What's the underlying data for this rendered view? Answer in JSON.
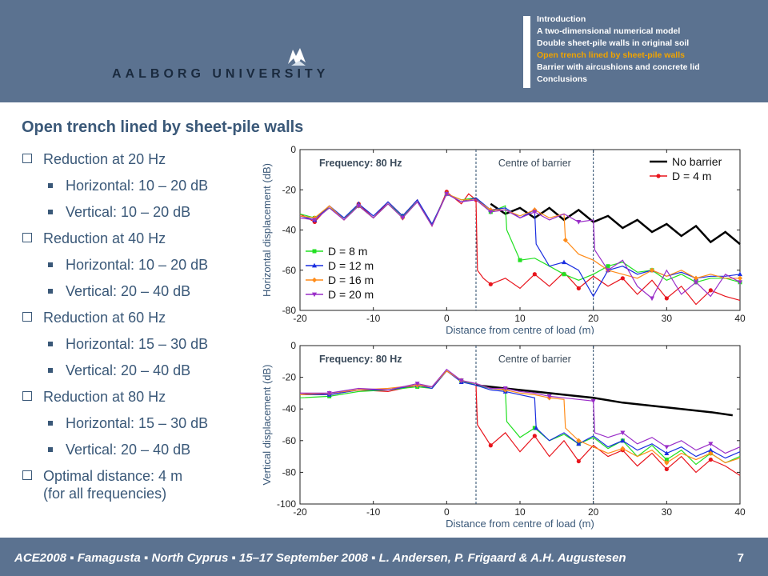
{
  "header": {
    "logo_text": "AALBORG UNIVERSITY",
    "nav_items": [
      "Introduction",
      "A two-dimensional numerical model",
      "Double sheet-pile walls in original soil",
      "Open trench lined by sheet-pile walls",
      "Barrier with aircushions and concrete lid",
      "Conclusions"
    ],
    "active_index": 3
  },
  "slide": {
    "title": "Open trench lined by sheet-pile walls",
    "bullets": [
      {
        "text": "Reduction at 20 Hz",
        "sub": [
          "Horizontal: 10 – 20 dB",
          "Vertical: 10 – 20 dB"
        ]
      },
      {
        "text": "Reduction at 40 Hz",
        "sub": [
          "Horizontal: 10 – 20 dB",
          "Vertical: 20 – 40 dB"
        ]
      },
      {
        "text": "Reduction at 60 Hz",
        "sub": [
          "Horizontal: 15 – 30 dB",
          "Vertical: 20 – 40 dB"
        ]
      },
      {
        "text": "Reduction at 80 Hz",
        "sub": [
          "Horizontal: 15 – 30 dB",
          "Vertical: 20 – 40 dB"
        ]
      }
    ],
    "final_bullet": {
      "line1": "Optimal distance: 4 m",
      "line2": "(for all frequencies)"
    }
  },
  "footer": {
    "text": "ACE2008 ▪ Famagusta ▪ North Cyprus ▪ 15–17 September 2008 ▪ L. Andersen, P. Frigaard & A.H. Augustesen",
    "page_number": "7"
  },
  "colors": {
    "header_bg": "#5b7290",
    "title_text": "#3a5878",
    "active_nav": "#f0a400",
    "no_barrier": "#000000",
    "d4": "#e8141c",
    "d8": "#22e022",
    "d12": "#1a2ee0",
    "d16": "#ff8c1a",
    "d20": "#9a2ec8"
  },
  "chart_data": [
    {
      "type": "line",
      "annotation_left": "Frequency: 80 Hz",
      "annotation_right": "Centre of barrier",
      "xlabel": "Distance from centre of load (m)",
      "ylabel": "Horizontal displacement (dB)",
      "xlim": [
        -20,
        40
      ],
      "ylim": [
        -80,
        0
      ],
      "xticks": [
        -20,
        -10,
        0,
        10,
        20,
        30,
        40
      ],
      "yticks": [
        0,
        -20,
        -40,
        -60,
        -80
      ],
      "barrier_lines_x": [
        4,
        20
      ],
      "legend_top": [
        "No barrier",
        "D = 4 m"
      ],
      "legend_bottom": [
        "D = 8 m",
        "D = 12 m",
        "D = 16 m",
        "D = 20 m"
      ],
      "series": [
        {
          "name": "No barrier",
          "color": "#000000",
          "marker": "none",
          "x": [
            6,
            8,
            10,
            12,
            14,
            16,
            18,
            20,
            22,
            24,
            26,
            28,
            30,
            32,
            34,
            36,
            38,
            40
          ],
          "y": [
            -27,
            -32,
            -29,
            -34,
            -29,
            -35,
            -30,
            -36,
            -33,
            -39,
            -35,
            -41,
            -37,
            -43,
            -38,
            -46,
            -41,
            -47
          ]
        },
        {
          "name": "D = 4 m",
          "color": "#e8141c",
          "marker": "circle",
          "x": [
            -20,
            -18,
            -16,
            -14,
            -12,
            -10,
            -8,
            -6,
            -4,
            -2,
            0,
            2,
            3,
            4,
            4.2,
            5,
            6,
            8,
            10,
            12,
            14,
            16,
            18,
            20,
            22,
            24,
            26,
            28,
            30,
            32,
            34,
            36,
            38,
            40
          ],
          "y": [
            -32,
            -36,
            -28,
            -35,
            -27,
            -34,
            -26,
            -33,
            -25,
            -38,
            -21,
            -27,
            -22,
            -25,
            -60,
            -64,
            -67,
            -64,
            -69,
            -62,
            -68,
            -61,
            -69,
            -63,
            -68,
            -64,
            -72,
            -65,
            -74,
            -68,
            -77,
            -70,
            -73,
            -75
          ]
        },
        {
          "name": "D = 8 m",
          "color": "#22e022",
          "marker": "square",
          "x": [
            -20,
            -18,
            -16,
            -14,
            -12,
            -10,
            -8,
            -6,
            -4,
            -2,
            0,
            2,
            4,
            6,
            8,
            8.2,
            10,
            12,
            14,
            16,
            18,
            20,
            22,
            24,
            26,
            28,
            30,
            32,
            34,
            36,
            38,
            40
          ],
          "y": [
            -32,
            -34,
            -29,
            -34,
            -28,
            -34,
            -27,
            -33,
            -26,
            -37,
            -22,
            -25,
            -24,
            -31,
            -28,
            -40,
            -55,
            -54,
            -58,
            -62,
            -65,
            -62,
            -58,
            -56,
            -61,
            -60,
            -65,
            -62,
            -66,
            -64,
            -64,
            -66
          ]
        },
        {
          "name": "D = 12 m",
          "color": "#1a2ee0",
          "marker": "triangle",
          "x": [
            -20,
            -18,
            -16,
            -14,
            -12,
            -10,
            -8,
            -6,
            -4,
            -2,
            0,
            2,
            4,
            6,
            8,
            10,
            12,
            12.2,
            14,
            16,
            18,
            20,
            22,
            24,
            26,
            28,
            30,
            32,
            34,
            36,
            38,
            40
          ],
          "y": [
            -33,
            -35,
            -28,
            -34,
            -27,
            -33,
            -26,
            -33,
            -25,
            -37,
            -22,
            -26,
            -24,
            -30,
            -29,
            -34,
            -30,
            -47,
            -58,
            -56,
            -60,
            -73,
            -60,
            -58,
            -62,
            -60,
            -63,
            -61,
            -64,
            -63,
            -63,
            -62
          ]
        },
        {
          "name": "D = 16 m",
          "color": "#ff8c1a",
          "marker": "diamond",
          "x": [
            -20,
            -18,
            -16,
            -14,
            -12,
            -10,
            -8,
            -6,
            -4,
            -2,
            0,
            2,
            4,
            6,
            8,
            10,
            12,
            14,
            16,
            16.2,
            18,
            20,
            22,
            24,
            26,
            28,
            30,
            32,
            34,
            36,
            38,
            40
          ],
          "y": [
            -33,
            -34,
            -28,
            -35,
            -28,
            -34,
            -27,
            -34,
            -26,
            -38,
            -22,
            -25,
            -25,
            -30,
            -30,
            -33,
            -30,
            -34,
            -32,
            -45,
            -52,
            -55,
            -60,
            -62,
            -64,
            -60,
            -63,
            -60,
            -64,
            -62,
            -64,
            -64
          ]
        },
        {
          "name": "D = 20 m",
          "color": "#9a2ec8",
          "marker": "triangle-down",
          "x": [
            -20,
            -18,
            -16,
            -14,
            -12,
            -10,
            -8,
            -6,
            -4,
            -2,
            0,
            2,
            4,
            6,
            8,
            10,
            12,
            14,
            16,
            18,
            20,
            20.2,
            22,
            24,
            26,
            28,
            30,
            32,
            34,
            36,
            38,
            40
          ],
          "y": [
            -34,
            -35,
            -29,
            -35,
            -28,
            -34,
            -27,
            -34,
            -26,
            -38,
            -22,
            -26,
            -25,
            -31,
            -30,
            -34,
            -31,
            -35,
            -32,
            -36,
            -35,
            -50,
            -60,
            -55,
            -68,
            -74,
            -60,
            -72,
            -66,
            -73,
            -62,
            -66
          ]
        }
      ]
    },
    {
      "type": "line",
      "annotation_left": "Frequency: 80 Hz",
      "annotation_right": "Centre of barrier",
      "xlabel": "Distance from centre of load (m)",
      "ylabel": "Vertical displacement (dB)",
      "xlim": [
        -20,
        40
      ],
      "ylim": [
        -100,
        0
      ],
      "xticks": [
        -20,
        -10,
        0,
        10,
        20,
        30,
        40
      ],
      "yticks": [
        0,
        -20,
        -40,
        -60,
        -80,
        -100
      ],
      "barrier_lines_x": [
        4,
        20
      ],
      "series": [
        {
          "name": "No barrier",
          "color": "#000000",
          "marker": "none",
          "x": [
            4,
            8,
            12,
            16,
            20,
            24,
            28,
            32,
            36,
            39
          ],
          "y": [
            -25,
            -27,
            -29,
            -31,
            -33,
            -36,
            -38,
            -40,
            -42,
            -44
          ]
        },
        {
          "name": "D = 4 m",
          "color": "#e8141c",
          "marker": "circle",
          "x": [
            -20,
            -16,
            -12,
            -8,
            -4,
            -2,
            0,
            2,
            4,
            4.2,
            6,
            8,
            10,
            12,
            14,
            16,
            18,
            20,
            22,
            24,
            26,
            28,
            30,
            32,
            34,
            36,
            38,
            40
          ],
          "y": [
            -30,
            -31,
            -28,
            -29,
            -25,
            -26,
            -16,
            -22,
            -25,
            -50,
            -63,
            -55,
            -67,
            -57,
            -70,
            -60,
            -73,
            -63,
            -70,
            -66,
            -76,
            -68,
            -78,
            -70,
            -80,
            -72,
            -76,
            -82
          ]
        },
        {
          "name": "D = 8 m",
          "color": "#22e022",
          "marker": "square",
          "x": [
            -20,
            -16,
            -12,
            -8,
            -4,
            -2,
            0,
            2,
            4,
            6,
            8,
            8.2,
            10,
            12,
            14,
            16,
            18,
            20,
            22,
            24,
            26,
            28,
            30,
            32,
            34,
            36,
            38,
            40
          ],
          "y": [
            -33,
            -32,
            -29,
            -28,
            -26,
            -27,
            -16,
            -22,
            -25,
            -27,
            -28,
            -48,
            -58,
            -52,
            -60,
            -56,
            -62,
            -58,
            -65,
            -60,
            -70,
            -63,
            -72,
            -66,
            -75,
            -68,
            -74,
            -70
          ]
        },
        {
          "name": "D = 12 m",
          "color": "#1a2ee0",
          "marker": "triangle",
          "x": [
            -20,
            -16,
            -12,
            -8,
            -4,
            -2,
            0,
            2,
            4,
            6,
            8,
            10,
            12,
            12.2,
            14,
            16,
            18,
            20,
            22,
            24,
            26,
            28,
            30,
            32,
            34,
            36,
            38,
            40
          ],
          "y": [
            -31,
            -31,
            -28,
            -28,
            -25,
            -27,
            -16,
            -23,
            -25,
            -28,
            -29,
            -31,
            -33,
            -52,
            -60,
            -55,
            -62,
            -57,
            -64,
            -60,
            -66,
            -62,
            -68,
            -64,
            -70,
            -66,
            -71,
            -67
          ]
        },
        {
          "name": "D = 16 m",
          "color": "#ff8c1a",
          "marker": "diamond",
          "x": [
            -20,
            -16,
            -12,
            -8,
            -4,
            -2,
            0,
            2,
            4,
            6,
            8,
            10,
            12,
            14,
            16,
            16.2,
            18,
            20,
            22,
            24,
            26,
            28,
            30,
            32,
            34,
            36,
            38,
            40
          ],
          "y": [
            -31,
            -30,
            -28,
            -27,
            -25,
            -26,
            -16,
            -22,
            -24,
            -27,
            -28,
            -30,
            -31,
            -33,
            -34,
            -52,
            -60,
            -64,
            -68,
            -65,
            -70,
            -66,
            -74,
            -68,
            -72,
            -68,
            -74,
            -71
          ]
        },
        {
          "name": "D = 20 m",
          "color": "#9a2ec8",
          "marker": "triangle-down",
          "x": [
            -20,
            -16,
            -12,
            -8,
            -4,
            -2,
            0,
            2,
            4,
            6,
            8,
            10,
            12,
            14,
            16,
            18,
            20,
            20.2,
            22,
            24,
            26,
            28,
            30,
            32,
            34,
            36,
            38,
            40
          ],
          "y": [
            -30,
            -30,
            -27,
            -28,
            -24,
            -26,
            -15,
            -22,
            -24,
            -27,
            -27,
            -29,
            -30,
            -32,
            -33,
            -34,
            -35,
            -55,
            -58,
            -55,
            -62,
            -58,
            -64,
            -60,
            -66,
            -62,
            -68,
            -64
          ]
        }
      ]
    }
  ]
}
